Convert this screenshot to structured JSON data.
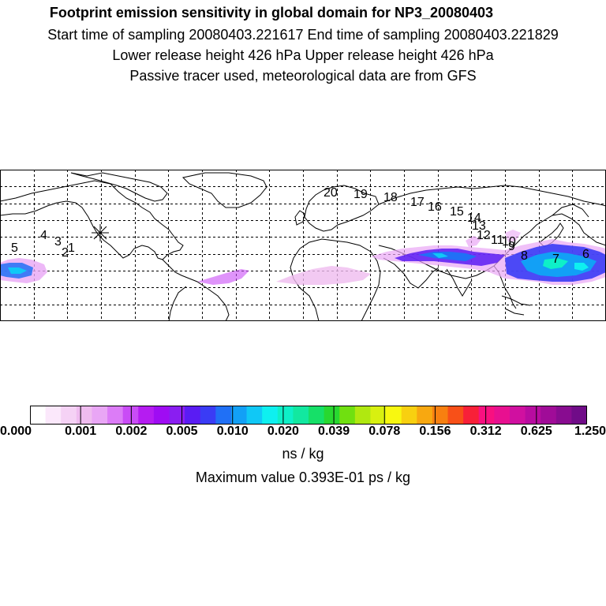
{
  "titles": {
    "line1": "Footprint emission sensitivity in global domain for NP3_20080403",
    "line2": "Start time of sampling 20080403.221617     End time of sampling 20080403.221829",
    "line3": "Lower release height  426 hPa       Upper release height  426 hPa",
    "line4": "Passive tracer used, meteorological data are from GFS"
  },
  "map": {
    "point_labels": [
      "1",
      "2",
      "3",
      "4",
      "5",
      "6",
      "7",
      "8",
      "9",
      "10",
      "11",
      "12",
      "13",
      "14",
      "15",
      "16",
      "17",
      "18",
      "19",
      "20"
    ],
    "grid": "dashed",
    "release_marker": "asterisk"
  },
  "colorbar": {
    "colors": [
      "#ffffff",
      "#fbe8fb",
      "#f5d2f5",
      "#efbcef",
      "#e9a6f5",
      "#dc7cf7",
      "#c94cf6",
      "#b51cf1",
      "#9f0cf3",
      "#8a1ef1",
      "#5a1cf3",
      "#3a3cf5",
      "#2070f6",
      "#12a0f6",
      "#10c8f6",
      "#0ef0f0",
      "#0ef0c8",
      "#12e8a0",
      "#16e068",
      "#28d830",
      "#70e010",
      "#b0e810",
      "#d8f010",
      "#f8f810",
      "#f8d010",
      "#f8a810",
      "#f88010",
      "#f85018",
      "#f82038",
      "#f81080",
      "#e81090",
      "#d010a0",
      "#b80ca0",
      "#a00c98",
      "#880c90",
      "#700c88"
    ],
    "major_divisions": 11,
    "tick_labels": [
      "0.000",
      "0.001",
      "0.002",
      "0.005",
      "0.010",
      "0.020",
      "0.039",
      "0.078",
      "0.156",
      "0.312",
      "0.625",
      "1.250"
    ]
  },
  "units": "ns / kg",
  "max_value": "Maximum value  0.393E-01 ps / kg"
}
